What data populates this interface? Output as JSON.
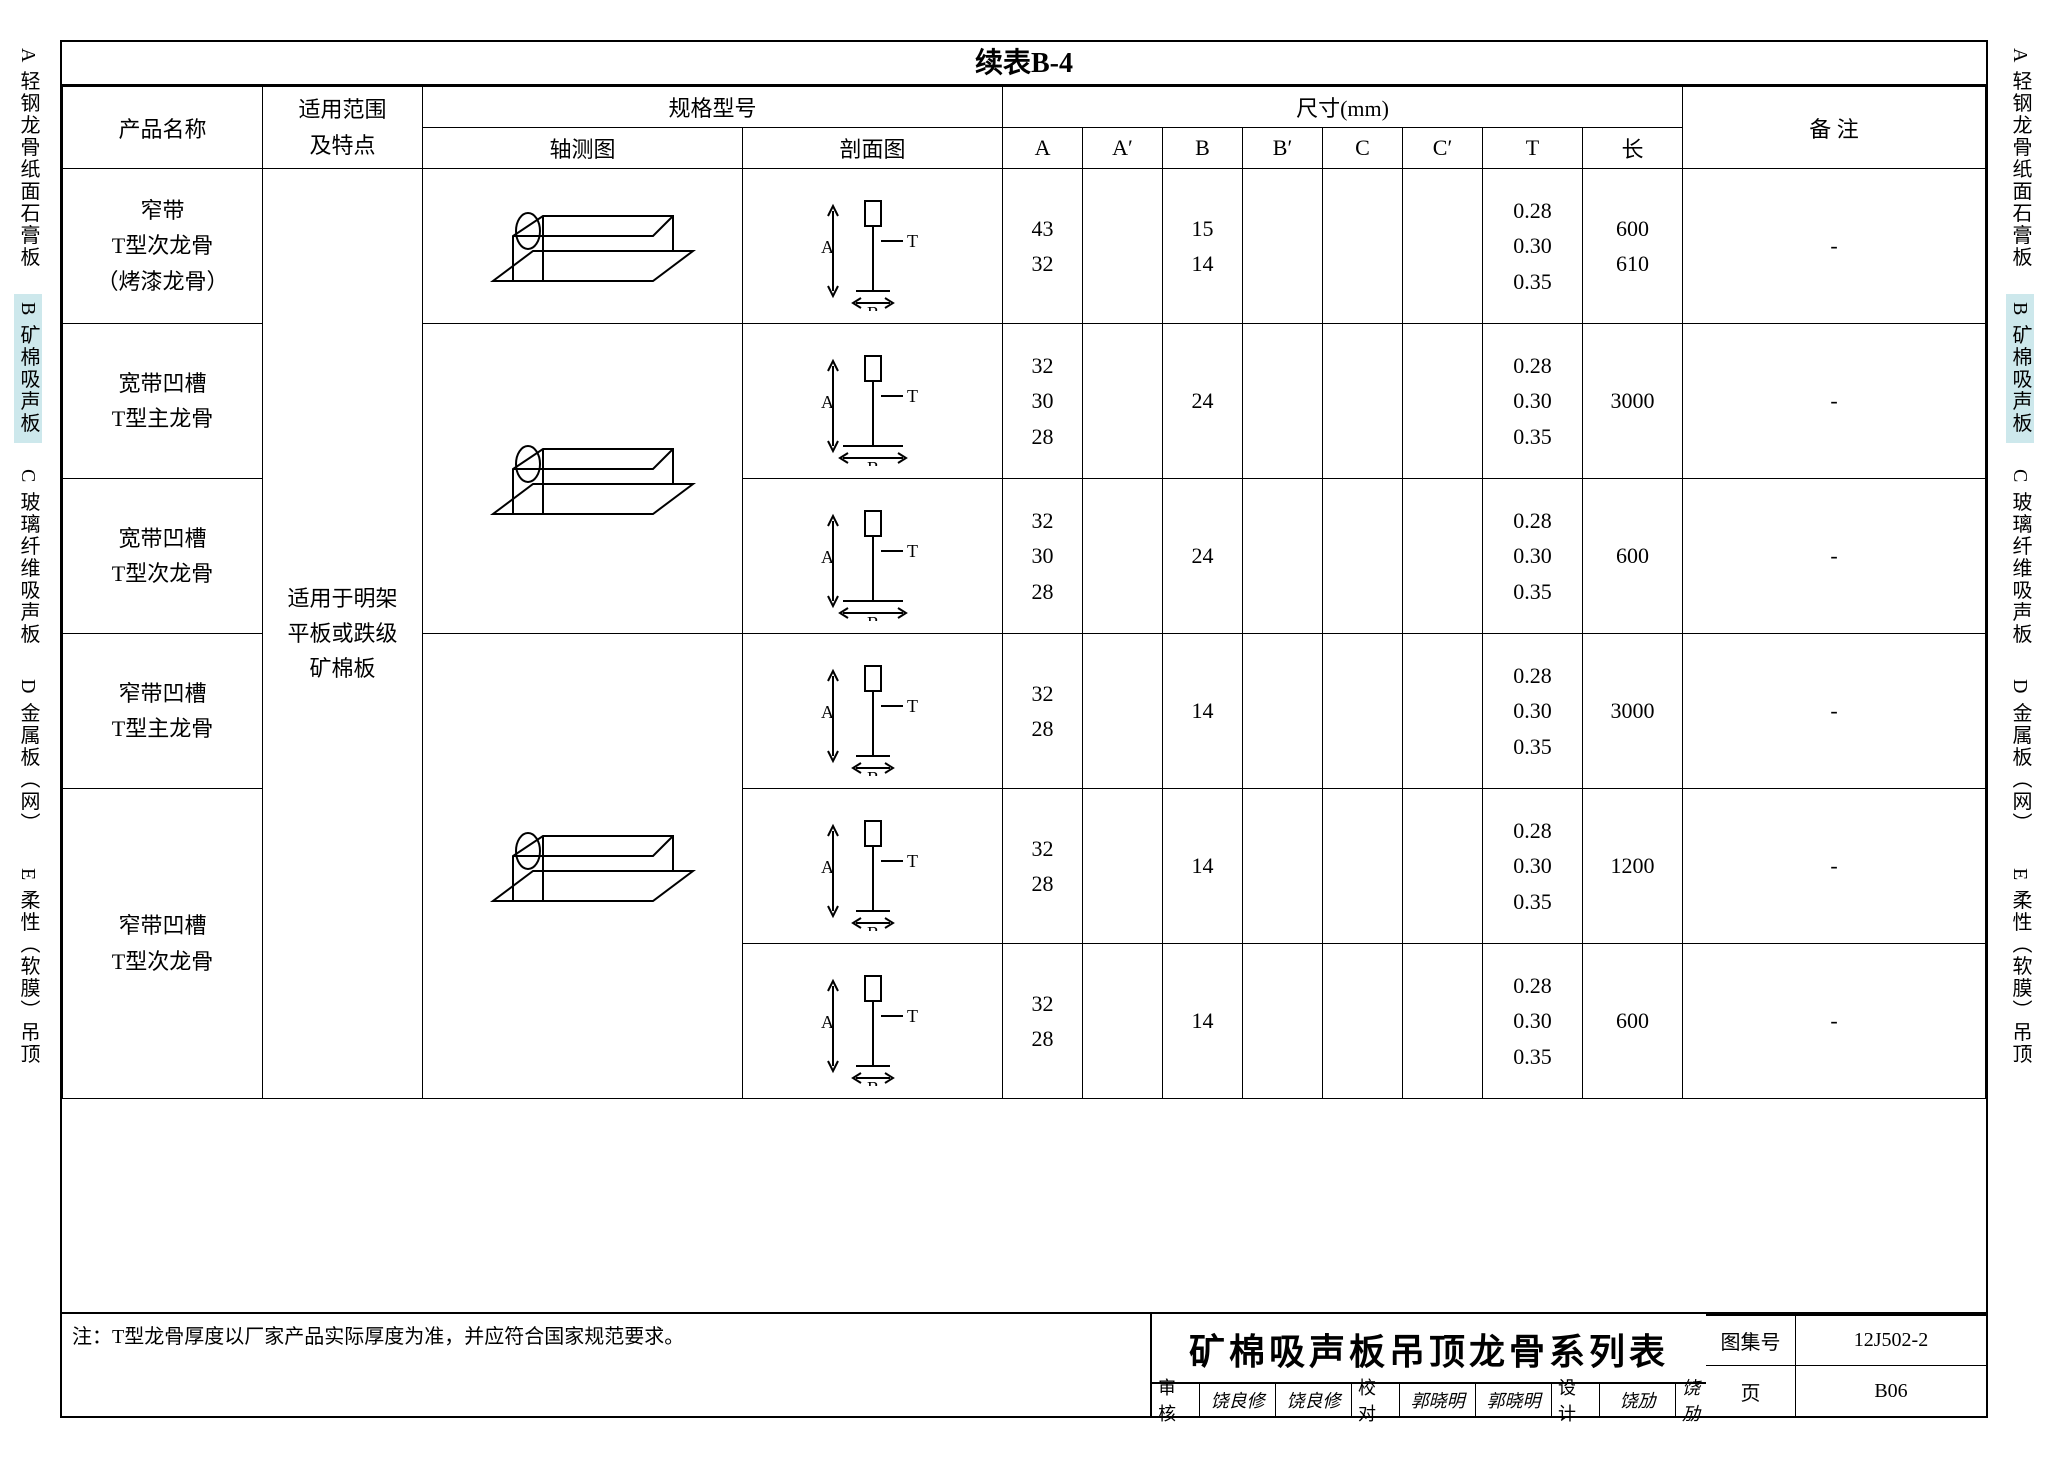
{
  "sidebar_tabs": [
    {
      "id": "A",
      "label": "A 轻钢龙骨纸面石膏板",
      "active": false
    },
    {
      "id": "B",
      "label": "B 矿棉吸声板",
      "active": true
    },
    {
      "id": "C",
      "label": "C 玻璃纤维吸声板",
      "active": false
    },
    {
      "id": "D",
      "label": "D 金属板（网）",
      "active": false
    },
    {
      "id": "E",
      "label": "E 柔性（软膜）吊顶",
      "active": false
    }
  ],
  "table_title": "续表B-4",
  "headers": {
    "product": "产品名称",
    "scope": "适用范围\n及特点",
    "spec": "规格型号",
    "axon": "轴测图",
    "section": "剖面图",
    "dim": "尺寸(mm)",
    "dims": [
      "A",
      "A′",
      "B",
      "B′",
      "C",
      "C′",
      "T",
      "长"
    ],
    "remark": "备  注"
  },
  "scope_text": "适用于明架\n平板或跌级\n矿棉板",
  "rows": [
    {
      "name": "窄带\nT型次龙骨\n（烤漆龙骨）",
      "A": "43\n32",
      "Ap": "",
      "B": "15\n14",
      "Bp": "",
      "C": "",
      "Cp": "",
      "T": "0.28\n0.30\n0.35",
      "L": "600\n610",
      "remark": "-",
      "section": "narrow"
    },
    {
      "name": "宽带凹槽\nT型主龙骨",
      "A": "32\n30\n28",
      "Ap": "",
      "B": "24",
      "Bp": "",
      "C": "",
      "Cp": "",
      "T": "0.28\n0.30\n0.35",
      "L": "3000",
      "remark": "-",
      "section": "wide"
    },
    {
      "name": "宽带凹槽\nT型次龙骨",
      "A": "32\n30\n28",
      "Ap": "",
      "B": "24",
      "Bp": "",
      "C": "",
      "Cp": "",
      "T": "0.28\n0.30\n0.35",
      "L": "600",
      "remark": "-",
      "section": "wide"
    },
    {
      "name": "窄带凹槽\nT型主龙骨",
      "A": "32\n28",
      "Ap": "",
      "B": "14",
      "Bp": "",
      "C": "",
      "Cp": "",
      "T": "0.28\n0.30\n0.35",
      "L": "3000",
      "remark": "-",
      "section": "narrow"
    },
    {
      "name": "",
      "A": "32\n28",
      "Ap": "",
      "B": "14",
      "Bp": "",
      "C": "",
      "Cp": "",
      "T": "0.28\n0.30\n0.35",
      "L": "1200",
      "remark": "-",
      "section": "narrow"
    },
    {
      "name": "窄带凹槽\nT型次龙骨",
      "A": "32\n28",
      "Ap": "",
      "B": "14",
      "Bp": "",
      "C": "",
      "Cp": "",
      "T": "0.28\n0.30\n0.35",
      "L": "600",
      "remark": "-",
      "section": "narrow"
    }
  ],
  "note": "注：T型龙骨厚度以厂家产品实际厚度为准，并应符合国家规范要求。",
  "footer": {
    "title": "矿棉吸声板吊顶龙骨系列表",
    "atlas_label": "图集号",
    "atlas": "12J502-2",
    "page_label": "页",
    "page": "B06",
    "sigs": [
      {
        "label": "审核",
        "name": "饶良修",
        "sign": "饶良修"
      },
      {
        "label": "校对",
        "name": "郭晓明",
        "sign": "郭晓明"
      },
      {
        "label": "设计",
        "name": "饶劢",
        "sign": "饶劢"
      }
    ]
  },
  "colors": {
    "line": "#000000",
    "bg": "#ffffff",
    "tab_active": "#cde8ec"
  }
}
